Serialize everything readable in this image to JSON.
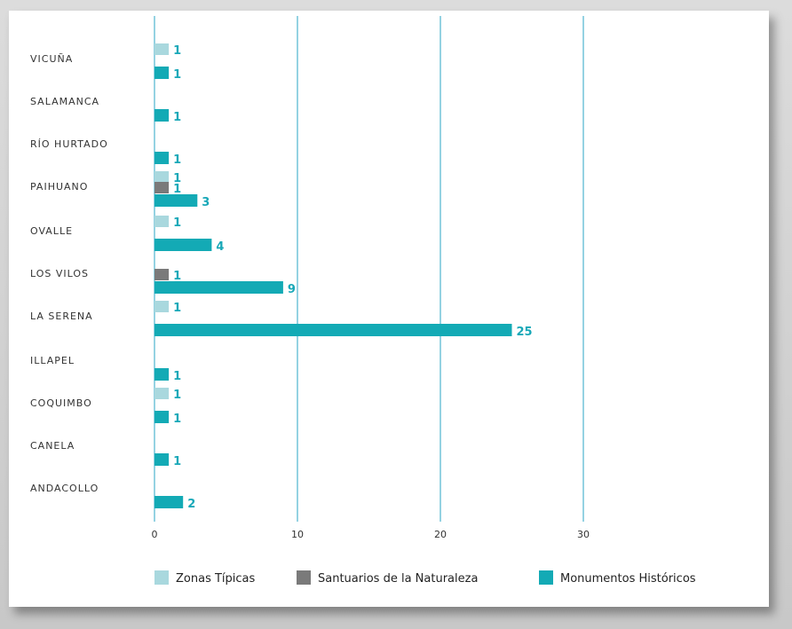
{
  "chart_data": {
    "type": "bar",
    "orientation": "horizontal",
    "categories": [
      "VICUÑA",
      "SALAMANCA",
      "RÍO HURTADO",
      "PAIHUANO",
      "OVALLE",
      "LOS VILOS",
      "LA SERENA",
      "ILLAPEL",
      "COQUIMBO",
      "CANELA",
      "ANDACOLLO"
    ],
    "series": [
      {
        "name": "Zonas Típicas",
        "color": "#a9d8de",
        "values": [
          1,
          null,
          null,
          1,
          1,
          null,
          1,
          null,
          1,
          null,
          null
        ]
      },
      {
        "name": "Santuarios de la Naturaleza",
        "color": "#7a7a7a",
        "values": [
          null,
          null,
          null,
          1,
          null,
          1,
          null,
          null,
          null,
          null,
          null
        ]
      },
      {
        "name": "Monumentos Históricos",
        "color": "#13aab5",
        "values": [
          1,
          1,
          1,
          3,
          4,
          9,
          25,
          1,
          1,
          1,
          2
        ]
      }
    ],
    "xticks": [
      "0",
      "10",
      "20",
      "30"
    ],
    "xlim": [
      0,
      30
    ],
    "grid": true,
    "legend": "bottom"
  }
}
